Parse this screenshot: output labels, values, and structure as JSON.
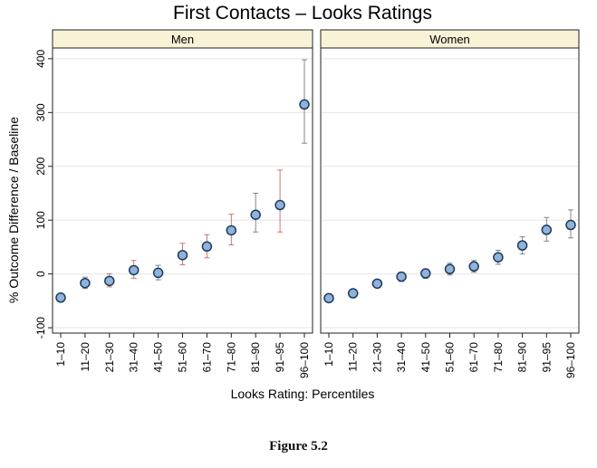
{
  "chart_data": {
    "type": "scatter",
    "title": "First Contacts – Looks Ratings",
    "xlabel": "Looks Rating: Percentiles",
    "ylabel": "% Outcome Difference / Baseline",
    "ylim": [
      -110,
      420
    ],
    "yticks": [
      -100,
      0,
      100,
      200,
      300,
      400
    ],
    "grid": true,
    "error_bars": true,
    "categories": [
      "1–10",
      "11–20",
      "21–30",
      "31–40",
      "41–50",
      "51–60",
      "61–70",
      "71–80",
      "81–90",
      "91–95",
      "96–100"
    ],
    "panels": [
      {
        "name": "Men",
        "values": [
          -44,
          -17,
          -13,
          7,
          2,
          35,
          51,
          81,
          110,
          128,
          315
        ],
        "lower": [
          -50,
          -27,
          -24,
          -8,
          -11,
          17,
          30,
          54,
          78,
          78,
          243
        ],
        "upper": [
          -38,
          -6,
          0,
          25,
          16,
          57,
          73,
          111,
          150,
          193,
          398
        ],
        "colors": [
          "#555",
          "#555",
          "#b04040",
          "#b04040",
          "#555",
          "#b04040",
          "#b04040",
          "#b04040",
          "#555",
          "#b04040",
          "#555"
        ]
      },
      {
        "name": "Women",
        "values": [
          -45,
          -36,
          -18,
          -5,
          1,
          9,
          14,
          31,
          53,
          82,
          91
        ],
        "lower": [
          -51,
          -42,
          -25,
          -14,
          -8,
          -2,
          3,
          18,
          37,
          61,
          67
        ],
        "upper": [
          -39,
          -30,
          -11,
          3,
          9,
          20,
          25,
          44,
          69,
          105,
          119
        ],
        "colors": [
          "#555",
          "#555",
          "#555",
          "#555",
          "#555",
          "#555",
          "#555",
          "#555",
          "#555",
          "#555",
          "#555"
        ]
      }
    ],
    "colors": {
      "marker_fill": "#8fb3dc",
      "marker_stroke": "#1e3a5a",
      "strip": "#f8f2d7",
      "grid": "#e6e6e6"
    }
  },
  "caption": "Figure 5.2"
}
